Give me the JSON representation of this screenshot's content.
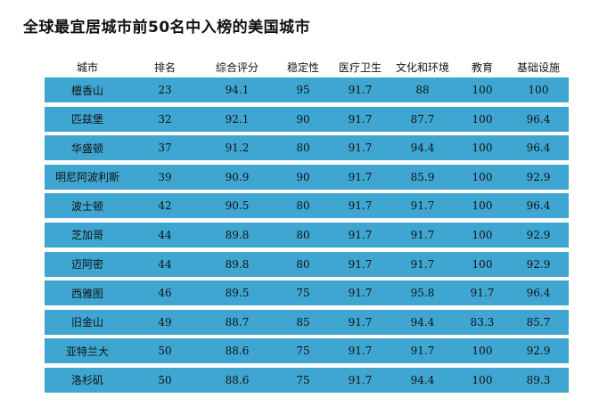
{
  "chart_data": {
    "type": "table",
    "title": "全球最宜居城市前50名中入榜的美国城市",
    "columns": [
      "城市",
      "排名",
      "综合评分",
      "稳定性",
      "医疗卫生",
      "文化和环境",
      "教育",
      "基础设施"
    ],
    "rows": [
      [
        "檀香山",
        "23",
        "94.1",
        "95",
        "91.7",
        "88",
        "100",
        "100"
      ],
      [
        "匹兹堡",
        "32",
        "92.1",
        "90",
        "91.7",
        "87.7",
        "100",
        "96.4"
      ],
      [
        "华盛顿",
        "37",
        "91.2",
        "80",
        "91.7",
        "94.4",
        "100",
        "96.4"
      ],
      [
        "明尼阿波利斯",
        "39",
        "90.9",
        "90",
        "91.7",
        "85.9",
        "100",
        "92.9"
      ],
      [
        "波士顿",
        "42",
        "90.5",
        "80",
        "91.7",
        "91.7",
        "100",
        "96.4"
      ],
      [
        "芝加哥",
        "44",
        "89.8",
        "80",
        "91.7",
        "91.7",
        "100",
        "92.9"
      ],
      [
        "迈阿密",
        "44",
        "89.8",
        "80",
        "91.7",
        "91.7",
        "100",
        "92.9"
      ],
      [
        "西雅图",
        "46",
        "89.5",
        "75",
        "91.7",
        "95.8",
        "91.7",
        "96.4"
      ],
      [
        "旧金山",
        "49",
        "88.7",
        "85",
        "91.7",
        "94.4",
        "83.3",
        "85.7"
      ],
      [
        "亚特兰大",
        "50",
        "88.6",
        "75",
        "91.7",
        "91.7",
        "100",
        "92.9"
      ],
      [
        "洛杉矶",
        "50",
        "88.6",
        "75",
        "91.7",
        "94.4",
        "100",
        "89.3"
      ]
    ],
    "row_color": "#3fa6d2"
  }
}
